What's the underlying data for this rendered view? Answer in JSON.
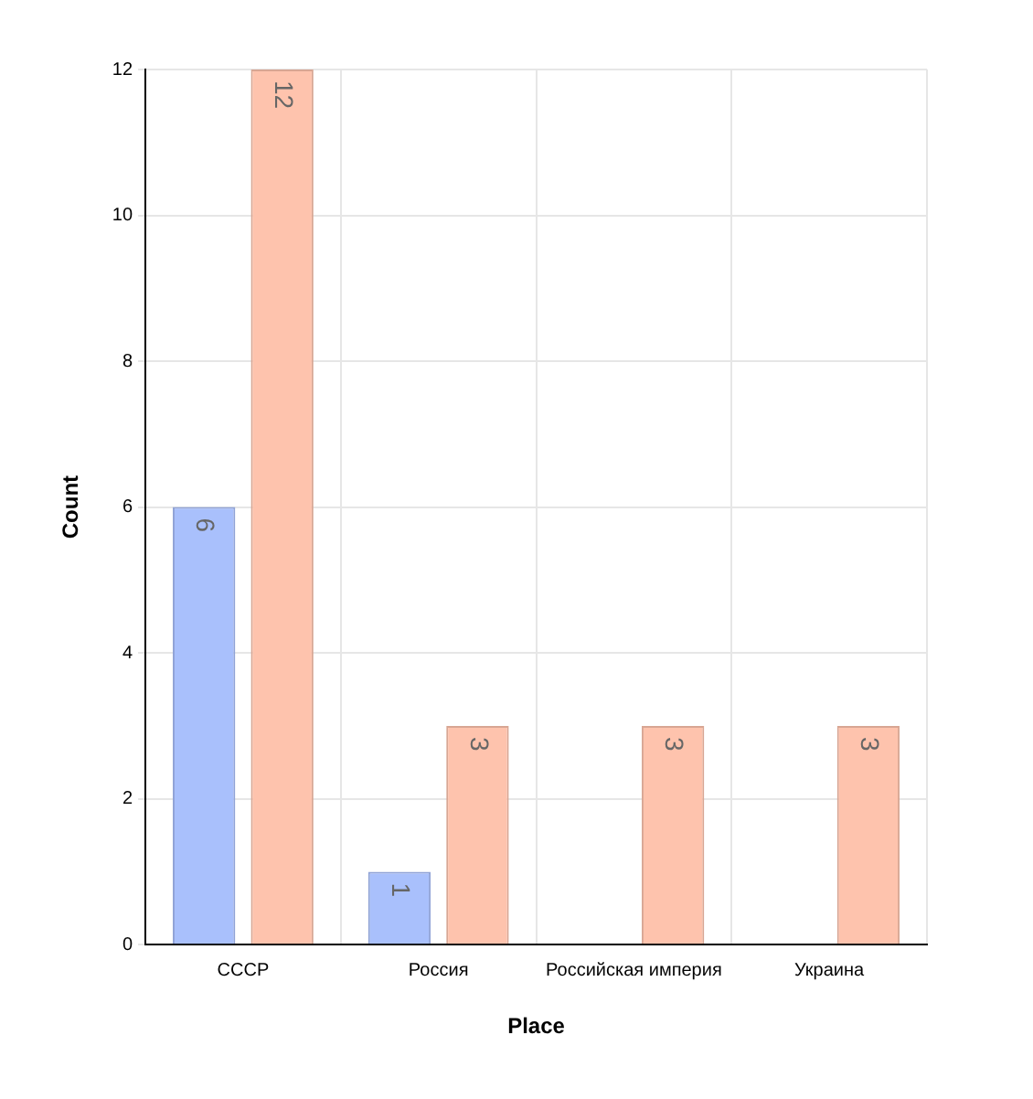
{
  "chart_data": {
    "type": "bar",
    "xlabel": "Place",
    "ylabel": "Count",
    "categories": [
      "СССР",
      "Россия",
      "Российская империя",
      "Украина"
    ],
    "series": [
      {
        "color": "#a9c0fc",
        "values": [
          6,
          1,
          null,
          null
        ]
      },
      {
        "color": "#fec3ad",
        "values": [
          12,
          3,
          3,
          3
        ]
      }
    ],
    "ylim": [
      0,
      12
    ],
    "yticks": [
      0,
      2,
      4,
      6,
      8,
      10,
      12
    ],
    "grid": true,
    "legend": false,
    "data_labels": true
  }
}
